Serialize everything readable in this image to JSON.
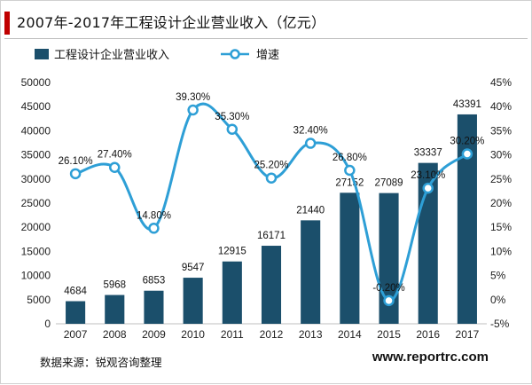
{
  "page": {
    "title": "2007年-2017年工程设计企业营业收入（亿元）",
    "source": "数据来源：锐观咨询整理",
    "watermark": "www.reportrc.com"
  },
  "colors": {
    "bar": "#1b4f6b",
    "line": "#2e9fd6",
    "accent": "#c00000"
  },
  "chart_data": {
    "type": "bar",
    "title": "2007年-2017年工程设计企业营业收入（亿元）",
    "categories": [
      "2007",
      "2008",
      "2009",
      "2010",
      "2011",
      "2012",
      "2013",
      "2014",
      "2015",
      "2016",
      "2017"
    ],
    "series": [
      {
        "name": "工程设计企业营业收入",
        "type": "bar",
        "axis": "left",
        "values": [
          4684,
          5968,
          6853,
          9547,
          12915,
          16171,
          21440,
          27152,
          27089,
          33337,
          43391
        ],
        "labels": [
          "4684",
          "5968",
          "6853",
          "9547",
          "12915",
          "16171",
          "21440",
          "27152",
          "27089",
          "33337",
          "43391"
        ]
      },
      {
        "name": "增速",
        "type": "line",
        "axis": "right",
        "values": [
          26.1,
          27.4,
          14.8,
          39.3,
          35.3,
          25.2,
          32.4,
          26.8,
          -0.2,
          23.1,
          30.2
        ],
        "labels": [
          "26.10%",
          "27.40%",
          "14.80%",
          "39.30%",
          "35.30%",
          "25.20%",
          "32.40%",
          "26.80%",
          "-0.20%",
          "23.10%",
          "30.20%"
        ]
      }
    ],
    "left_axis": {
      "ylim": [
        0,
        50000
      ],
      "ticks": [
        "0",
        "5000",
        "10000",
        "15000",
        "20000",
        "25000",
        "30000",
        "35000",
        "40000",
        "45000",
        "50000"
      ]
    },
    "right_axis": {
      "ylim": [
        -5,
        45
      ],
      "ticks": [
        "-5%",
        "0%",
        "5%",
        "10%",
        "15%",
        "20%",
        "25%",
        "30%",
        "35%",
        "40%",
        "45%"
      ]
    },
    "legend": {
      "position": "top-left",
      "items": [
        "工程设计企业营业收入",
        "增速"
      ]
    },
    "grid": false
  }
}
